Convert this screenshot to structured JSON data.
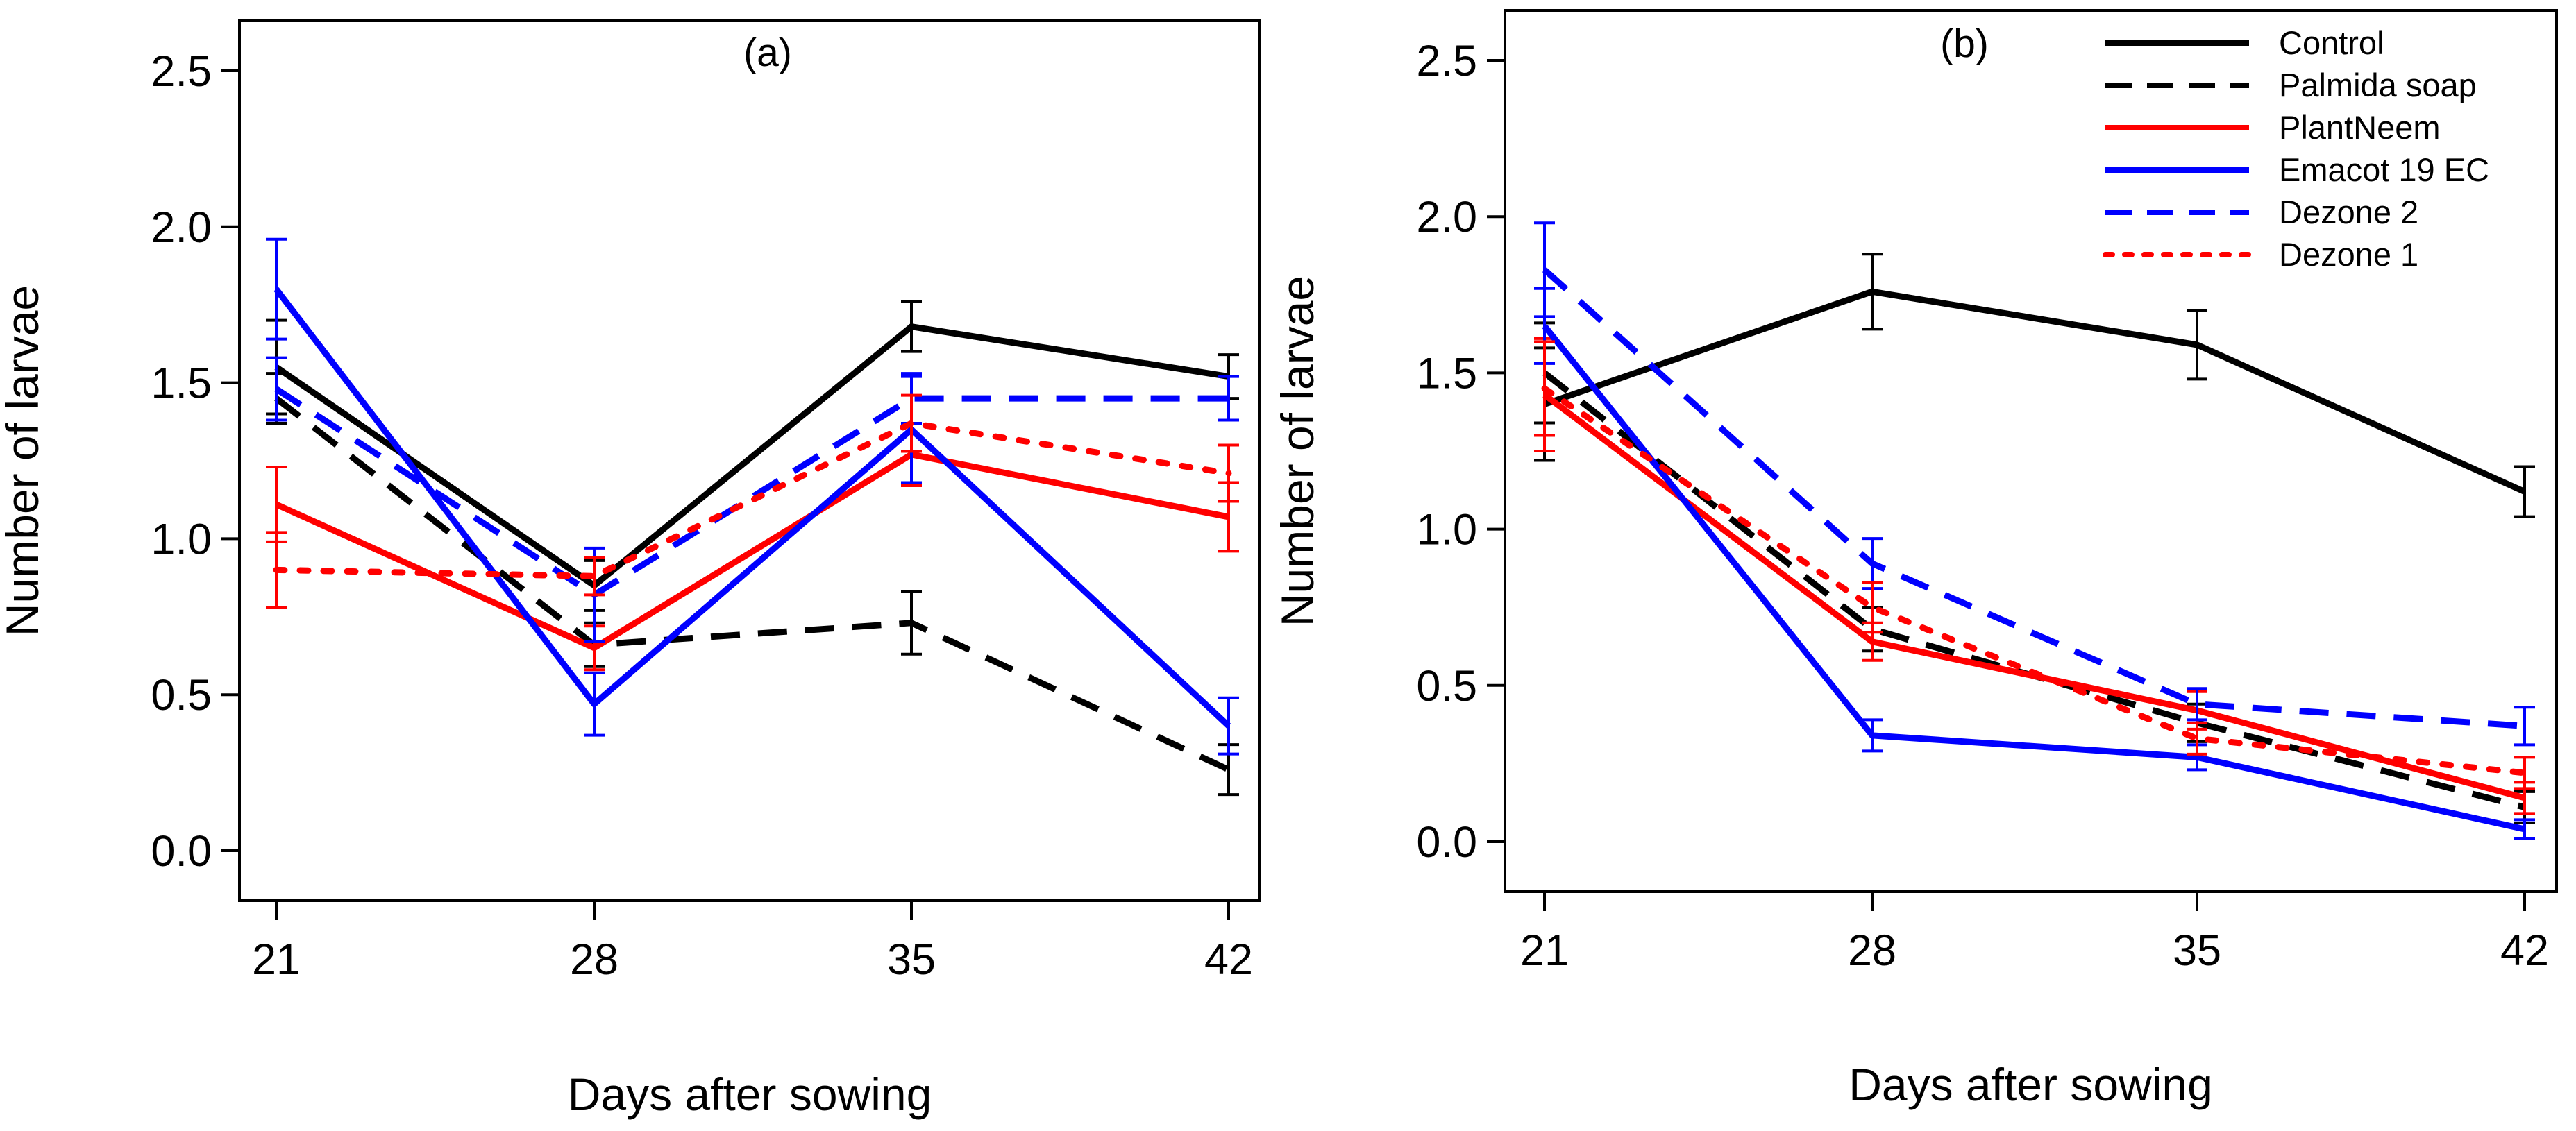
{
  "chart_data": [
    {
      "type": "line",
      "panel_label": "(a)",
      "xlabel": "Days after sowing",
      "ylabel": "Number of larvae",
      "categories": [
        21,
        28,
        35,
        42
      ],
      "x_tick_labels": [
        "21",
        "28",
        "35",
        "42"
      ],
      "ylim": [
        -0.1,
        2.6
      ],
      "y_ticks": [
        0.0,
        0.5,
        1.0,
        1.5,
        2.0,
        2.5
      ],
      "y_tick_labels": [
        "0.0",
        "0.5",
        "1.0",
        "1.5",
        "2.0",
        "2.5"
      ],
      "legend": false,
      "series": [
        {
          "name": "Control",
          "color": "#000000",
          "dash": "solid",
          "values": [
            1.55,
            0.85,
            1.68,
            1.52
          ],
          "errors": [
            0.15,
            0.08,
            0.08,
            0.07
          ]
        },
        {
          "name": "Palmida soap",
          "color": "#000000",
          "dash": "dashed",
          "values": [
            1.45,
            0.66,
            0.73,
            0.26
          ],
          "errors": [
            0.08,
            0.07,
            0.1,
            0.08
          ]
        },
        {
          "name": "PlantNeem",
          "color": "#ff0000",
          "dash": "solid",
          "values": [
            1.11,
            0.65,
            1.27,
            1.07
          ],
          "errors": [
            0.12,
            0.07,
            0.1,
            0.11
          ]
        },
        {
          "name": "Emacot 19 EC",
          "color": "#0000ff",
          "dash": "solid",
          "values": [
            1.8,
            0.47,
            1.35,
            0.4
          ],
          "errors": [
            0.16,
            0.1,
            0.17,
            0.09
          ]
        },
        {
          "name": "Dezone 2",
          "color": "#0000ff",
          "dash": "dashed",
          "values": [
            1.48,
            0.82,
            1.45,
            1.45
          ],
          "errors": [
            0.1,
            0.15,
            0.08,
            0.07
          ]
        },
        {
          "name": "Dezone 1",
          "color": "#ff0000",
          "dash": "dotted",
          "values": [
            0.9,
            0.88,
            1.37,
            1.21
          ],
          "errors": [
            0.12,
            0.06,
            0.09,
            0.09
          ]
        }
      ]
    },
    {
      "type": "line",
      "panel_label": "(b)",
      "xlabel": "Days after sowing",
      "ylabel": "Number of larvae",
      "categories": [
        21,
        28,
        35,
        42
      ],
      "x_tick_labels": [
        "21",
        "28",
        "35",
        "42"
      ],
      "ylim": [
        -0.1,
        2.6
      ],
      "y_ticks": [
        0.0,
        0.5,
        1.0,
        1.5,
        2.0,
        2.5
      ],
      "y_tick_labels": [
        "0.0",
        "0.5",
        "1.0",
        "1.5",
        "2.0",
        "2.5"
      ],
      "legend": true,
      "legend_position": "top-right",
      "series": [
        {
          "name": "Control",
          "color": "#000000",
          "dash": "solid",
          "values": [
            1.4,
            1.76,
            1.59,
            1.12
          ],
          "errors": [
            0.18,
            0.12,
            0.11,
            0.08
          ]
        },
        {
          "name": "Palmida soap",
          "color": "#000000",
          "dash": "dashed",
          "values": [
            1.5,
            0.68,
            0.38,
            0.11
          ],
          "errors": [
            0.16,
            0.07,
            0.06,
            0.05
          ]
        },
        {
          "name": "PlantNeem",
          "color": "#ff0000",
          "dash": "solid",
          "values": [
            1.43,
            0.64,
            0.42,
            0.14
          ],
          "errors": [
            0.18,
            0.06,
            0.06,
            0.05
          ]
        },
        {
          "name": "Emacot 19 EC",
          "color": "#0000ff",
          "dash": "solid",
          "values": [
            1.65,
            0.34,
            0.27,
            0.04
          ],
          "errors": [
            0.12,
            0.05,
            0.04,
            0.03
          ]
        },
        {
          "name": "Dezone 2",
          "color": "#0000ff",
          "dash": "dashed",
          "values": [
            1.83,
            0.89,
            0.44,
            0.37
          ],
          "errors": [
            0.15,
            0.08,
            0.05,
            0.06
          ]
        },
        {
          "name": "Dezone 1",
          "color": "#ff0000",
          "dash": "dotted",
          "values": [
            1.45,
            0.75,
            0.33,
            0.22
          ],
          "errors": [
            0.15,
            0.08,
            0.05,
            0.05
          ]
        }
      ]
    }
  ]
}
